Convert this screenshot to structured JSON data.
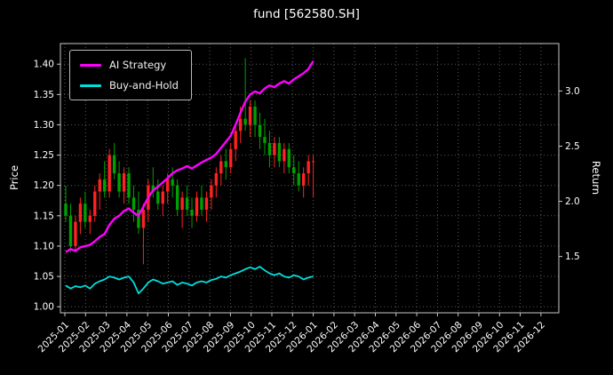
{
  "chart_data": {
    "type": "line",
    "title": "fund [562580.SH]",
    "xlabel": "",
    "ylabel_left": "Price",
    "ylabel_right": "Return",
    "legend_position": "upper left",
    "grid": true,
    "price_ylim": [
      0.99,
      1.434
    ],
    "return_ylim": [
      0.99,
      3.43
    ],
    "price_ticks": [
      "1.00",
      "1.05",
      "1.10",
      "1.15",
      "1.20",
      "1.25",
      "1.30",
      "1.35",
      "1.40"
    ],
    "return_ticks": [
      "1.5",
      "2.0",
      "2.5",
      "3.0"
    ],
    "x_tick_labels": [
      "2025-01",
      "2025-02",
      "2025-03",
      "2025-04",
      "2025-05",
      "2025-06",
      "2025-07",
      "2025-08",
      "2025-09",
      "2025-10",
      "2025-11",
      "2025-12",
      "2026-01",
      "2026-02",
      "2026-03",
      "2026-04",
      "2026-05",
      "2026-06",
      "2026-07",
      "2026-08",
      "2026-09",
      "2026-10",
      "2026-11",
      "2026-12"
    ],
    "data_span_months": 12,
    "series": [
      {
        "name": "AI Strategy",
        "color": "#ff00ff",
        "axis": "price",
        "values": [
          1.09,
          1.095,
          1.092,
          1.098,
          1.1,
          1.102,
          1.108,
          1.115,
          1.12,
          1.135,
          1.145,
          1.15,
          1.158,
          1.162,
          1.155,
          1.15,
          1.165,
          1.18,
          1.192,
          1.198,
          1.205,
          1.212,
          1.22,
          1.225,
          1.228,
          1.232,
          1.228,
          1.233,
          1.238,
          1.242,
          1.246,
          1.252,
          1.262,
          1.272,
          1.282,
          1.3,
          1.32,
          1.338,
          1.35,
          1.355,
          1.352,
          1.36,
          1.365,
          1.362,
          1.368,
          1.372,
          1.368,
          1.375,
          1.38,
          1.385,
          1.392,
          1.405
        ]
      },
      {
        "name": "Buy-and-Hold",
        "color": "#00dddd",
        "axis": "price",
        "values": [
          1.035,
          1.03,
          1.034,
          1.032,
          1.035,
          1.03,
          1.038,
          1.042,
          1.045,
          1.05,
          1.048,
          1.045,
          1.048,
          1.05,
          1.04,
          1.022,
          1.03,
          1.04,
          1.045,
          1.042,
          1.038,
          1.04,
          1.042,
          1.036,
          1.04,
          1.038,
          1.035,
          1.04,
          1.042,
          1.04,
          1.044,
          1.046,
          1.05,
          1.048,
          1.052,
          1.055,
          1.058,
          1.062,
          1.065,
          1.062,
          1.066,
          1.06,
          1.055,
          1.052,
          1.055,
          1.05,
          1.048,
          1.052,
          1.05,
          1.045,
          1.048,
          1.05
        ]
      }
    ],
    "candlestick": {
      "up_color": "#ff2222",
      "down_color": "#00a000",
      "ohlc": [
        [
          1.17,
          1.2,
          1.14,
          1.15
        ],
        [
          1.15,
          1.17,
          1.09,
          1.1
        ],
        [
          1.1,
          1.15,
          1.09,
          1.14
        ],
        [
          1.14,
          1.18,
          1.12,
          1.17
        ],
        [
          1.17,
          1.19,
          1.13,
          1.14
        ],
        [
          1.14,
          1.16,
          1.12,
          1.15
        ],
        [
          1.15,
          1.2,
          1.14,
          1.19
        ],
        [
          1.19,
          1.22,
          1.16,
          1.21
        ],
        [
          1.21,
          1.24,
          1.18,
          1.19
        ],
        [
          1.19,
          1.26,
          1.18,
          1.25
        ],
        [
          1.25,
          1.27,
          1.21,
          1.22
        ],
        [
          1.22,
          1.24,
          1.18,
          1.19
        ],
        [
          1.19,
          1.23,
          1.17,
          1.22
        ],
        [
          1.22,
          1.23,
          1.17,
          1.18
        ],
        [
          1.18,
          1.2,
          1.14,
          1.16
        ],
        [
          1.16,
          1.19,
          1.12,
          1.13
        ],
        [
          1.13,
          1.17,
          1.07,
          1.16
        ],
        [
          1.16,
          1.21,
          1.14,
          1.2
        ],
        [
          1.2,
          1.23,
          1.18,
          1.19
        ],
        [
          1.19,
          1.21,
          1.16,
          1.17
        ],
        [
          1.17,
          1.2,
          1.15,
          1.19
        ],
        [
          1.19,
          1.22,
          1.17,
          1.21
        ],
        [
          1.21,
          1.23,
          1.18,
          1.2
        ],
        [
          1.2,
          1.21,
          1.15,
          1.16
        ],
        [
          1.16,
          1.19,
          1.13,
          1.18
        ],
        [
          1.18,
          1.2,
          1.15,
          1.16
        ],
        [
          1.16,
          1.18,
          1.13,
          1.15
        ],
        [
          1.15,
          1.19,
          1.14,
          1.18
        ],
        [
          1.18,
          1.2,
          1.15,
          1.16
        ],
        [
          1.16,
          1.19,
          1.14,
          1.18
        ],
        [
          1.18,
          1.21,
          1.16,
          1.2
        ],
        [
          1.2,
          1.23,
          1.18,
          1.22
        ],
        [
          1.22,
          1.25,
          1.2,
          1.24
        ],
        [
          1.24,
          1.26,
          1.21,
          1.23
        ],
        [
          1.23,
          1.27,
          1.22,
          1.26
        ],
        [
          1.26,
          1.3,
          1.24,
          1.29
        ],
        [
          1.29,
          1.33,
          1.27,
          1.31
        ],
        [
          1.31,
          1.41,
          1.29,
          1.3
        ],
        [
          1.3,
          1.34,
          1.28,
          1.33
        ],
        [
          1.33,
          1.34,
          1.28,
          1.3
        ],
        [
          1.3,
          1.32,
          1.26,
          1.28
        ],
        [
          1.28,
          1.31,
          1.25,
          1.27
        ],
        [
          1.27,
          1.29,
          1.23,
          1.25
        ],
        [
          1.25,
          1.28,
          1.23,
          1.27
        ],
        [
          1.27,
          1.28,
          1.23,
          1.24
        ],
        [
          1.24,
          1.27,
          1.22,
          1.26
        ],
        [
          1.26,
          1.27,
          1.22,
          1.23
        ],
        [
          1.23,
          1.25,
          1.2,
          1.22
        ],
        [
          1.22,
          1.24,
          1.19,
          1.2
        ],
        [
          1.2,
          1.23,
          1.18,
          1.22
        ],
        [
          1.22,
          1.25,
          1.2,
          1.24
        ],
        [
          1.24,
          1.25,
          1.18,
          1.24
        ]
      ]
    }
  }
}
